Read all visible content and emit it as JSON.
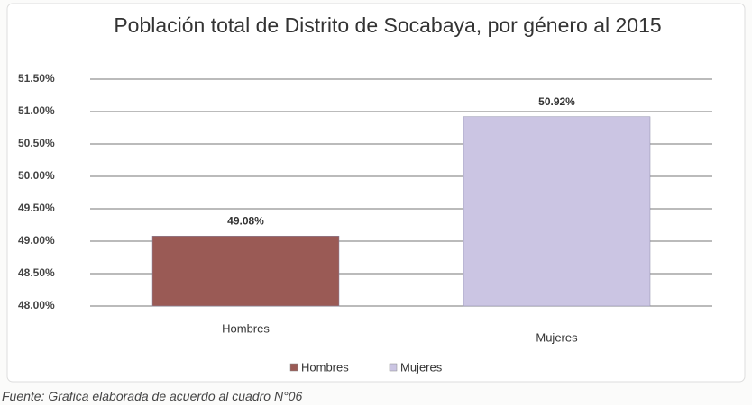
{
  "chart_data": {
    "type": "bar",
    "title": "Población total de Distrito de Socabaya, por género al 2015",
    "categories": [
      "Hombres",
      "Mujeres"
    ],
    "values": [
      49.08,
      50.92
    ],
    "value_labels": [
      "49.08%",
      "50.92%"
    ],
    "colors": [
      "#9a5a55",
      "#cbc5e3"
    ],
    "ylim": [
      48,
      51.5
    ],
    "yticks": [
      {
        "value": 48,
        "label": "48.00%"
      },
      {
        "value": 48.5,
        "label": "48.50%"
      },
      {
        "value": 49,
        "label": "49.00%"
      },
      {
        "value": 49.5,
        "label": "49.50%"
      },
      {
        "value": 50,
        "label": "50.00%"
      },
      {
        "value": 50.5,
        "label": "50.50%"
      },
      {
        "value": 51,
        "label": "51.00%"
      },
      {
        "value": 51.5,
        "label": "51.50%"
      }
    ],
    "grid": true,
    "legend": "bottom",
    "note": "Fuente: Grafica elaborada de acuerdo al cuadro N°06"
  }
}
